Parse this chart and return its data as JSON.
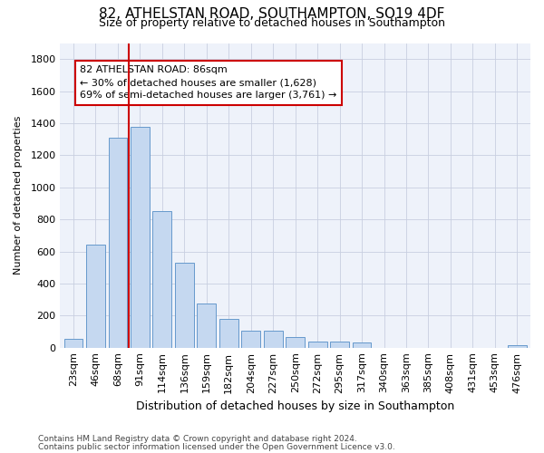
{
  "title1": "82, ATHELSTAN ROAD, SOUTHAMPTON, SO19 4DF",
  "title2": "Size of property relative to detached houses in Southampton",
  "xlabel": "Distribution of detached houses by size in Southampton",
  "ylabel": "Number of detached properties",
  "categories": [
    "23sqm",
    "46sqm",
    "68sqm",
    "91sqm",
    "114sqm",
    "136sqm",
    "159sqm",
    "182sqm",
    "204sqm",
    "227sqm",
    "250sqm",
    "272sqm",
    "295sqm",
    "317sqm",
    "340sqm",
    "363sqm",
    "385sqm",
    "408sqm",
    "431sqm",
    "453sqm",
    "476sqm"
  ],
  "values": [
    55,
    640,
    1310,
    1380,
    850,
    530,
    275,
    180,
    105,
    105,
    65,
    38,
    38,
    30,
    0,
    0,
    0,
    0,
    0,
    0,
    15
  ],
  "bar_color": "#c5d8f0",
  "bar_edge_color": "#6699cc",
  "vline_color": "#cc0000",
  "vline_x_index": 3,
  "annotation_line1": "82 ATHELSTAN ROAD: 86sqm",
  "annotation_line2": "← 30% of detached houses are smaller (1,628)",
  "annotation_line3": "69% of semi-detached houses are larger (3,761) →",
  "annotation_box_edgecolor": "#cc0000",
  "ylim": [
    0,
    1900
  ],
  "yticks": [
    0,
    200,
    400,
    600,
    800,
    1000,
    1200,
    1400,
    1600,
    1800
  ],
  "footnote1": "Contains HM Land Registry data © Crown copyright and database right 2024.",
  "footnote2": "Contains public sector information licensed under the Open Government Licence v3.0.",
  "bg_color": "#eef2fa",
  "grid_color": "#c8cfe0",
  "title1_fontsize": 11,
  "title2_fontsize": 9,
  "xlabel_fontsize": 9,
  "ylabel_fontsize": 8,
  "tick_fontsize": 8,
  "footnote_fontsize": 6.5,
  "annotation_fontsize": 8
}
